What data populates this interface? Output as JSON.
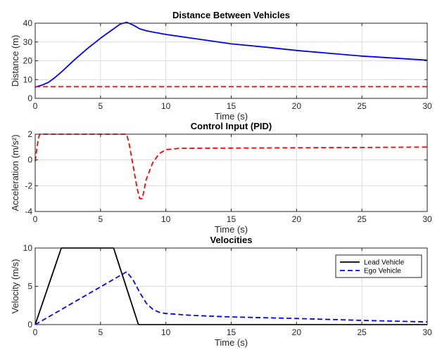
{
  "colors": {
    "blue": "#0000ff",
    "red": "#ff0000",
    "black": "#000000",
    "grid": "#dcdcdc"
  },
  "chart_data": [
    {
      "type": "line",
      "title": "Distance Between Vehicles",
      "xlabel": "Time (s)",
      "ylabel": "Distance (m)",
      "xlim": [
        0,
        30
      ],
      "ylim": [
        0,
        40
      ],
      "xticks": [
        0,
        5,
        10,
        15,
        20,
        25,
        30
      ],
      "yticks": [
        0,
        10,
        20,
        30,
        40
      ],
      "grid": true,
      "series": [
        {
          "color": "#0000ff",
          "style": "solid",
          "points": [
            [
              0,
              6
            ],
            [
              0.5,
              7
            ],
            [
              1,
              8.5
            ],
            [
              1.5,
              11
            ],
            [
              2,
              14
            ],
            [
              3,
              20.5
            ],
            [
              4,
              26.5
            ],
            [
              5,
              32
            ],
            [
              6,
              37
            ],
            [
              6.5,
              39.5
            ],
            [
              7,
              40.5
            ],
            [
              7.5,
              39
            ],
            [
              8,
              37
            ],
            [
              8.5,
              36
            ],
            [
              9,
              35.3
            ],
            [
              10,
              34
            ],
            [
              12,
              32
            ],
            [
              15,
              29
            ],
            [
              18,
              27
            ],
            [
              20,
              25.5
            ],
            [
              23,
              23.7
            ],
            [
              25,
              22.5
            ],
            [
              28,
              21.2
            ],
            [
              30,
              20.3
            ]
          ]
        },
        {
          "color": "#ff0000",
          "style": "dashed",
          "points": [
            [
              0,
              6.2
            ],
            [
              30,
              6.2
            ]
          ]
        }
      ]
    },
    {
      "type": "line",
      "title": "Control Input (PID)",
      "xlabel": "Time (s)",
      "ylabel": "Acceleration  (m/s²)",
      "xlim": [
        0,
        30
      ],
      "ylim": [
        -4,
        2
      ],
      "xticks": [
        0,
        5,
        10,
        15,
        20,
        25,
        30
      ],
      "yticks": [
        -4,
        -2,
        0,
        2
      ],
      "grid": true,
      "series": [
        {
          "color": "#ff0000",
          "style": "dashed",
          "points": [
            [
              0,
              -0.1
            ],
            [
              0.1,
              0.7
            ],
            [
              0.25,
              1.7
            ],
            [
              0.35,
              2
            ],
            [
              7,
              2
            ],
            [
              7.2,
              1.2
            ],
            [
              7.5,
              -0.5
            ],
            [
              7.8,
              -2.2
            ],
            [
              8,
              -3
            ],
            [
              8.2,
              -3
            ],
            [
              8.5,
              -1.5
            ],
            [
              9,
              -0.2
            ],
            [
              9.5,
              0.5
            ],
            [
              10,
              0.8
            ],
            [
              11,
              0.9
            ],
            [
              15,
              0.92
            ],
            [
              20,
              0.95
            ],
            [
              25,
              0.97
            ],
            [
              30,
              1
            ]
          ]
        }
      ]
    },
    {
      "type": "line",
      "title": "Velocities",
      "xlabel": "Time (s)",
      "ylabel": "Velocity (m/s)",
      "xlim": [
        0,
        30
      ],
      "ylim": [
        0,
        10
      ],
      "xticks": [
        0,
        5,
        10,
        15,
        20,
        25,
        30
      ],
      "yticks": [
        0,
        5,
        10
      ],
      "grid": true,
      "legend_position": "top-right",
      "series": [
        {
          "name": "Lead Vehicle",
          "color": "#000000",
          "style": "solid",
          "points": [
            [
              0,
              0
            ],
            [
              2,
              10
            ],
            [
              6,
              10
            ],
            [
              7.9,
              0
            ],
            [
              30,
              0
            ]
          ]
        },
        {
          "name": "Ego Vehicle",
          "color": "#0000ff",
          "style": "dashed",
          "points": [
            [
              0,
              0
            ],
            [
              7,
              6.9
            ],
            [
              7.5,
              5.8
            ],
            [
              8,
              4.2
            ],
            [
              8.5,
              2.8
            ],
            [
              9,
              2
            ],
            [
              9.5,
              1.6
            ],
            [
              10,
              1.45
            ],
            [
              12,
              1.2
            ],
            [
              15,
              1
            ],
            [
              20,
              0.8
            ],
            [
              25,
              0.55
            ],
            [
              30,
              0.35
            ]
          ]
        }
      ]
    }
  ]
}
